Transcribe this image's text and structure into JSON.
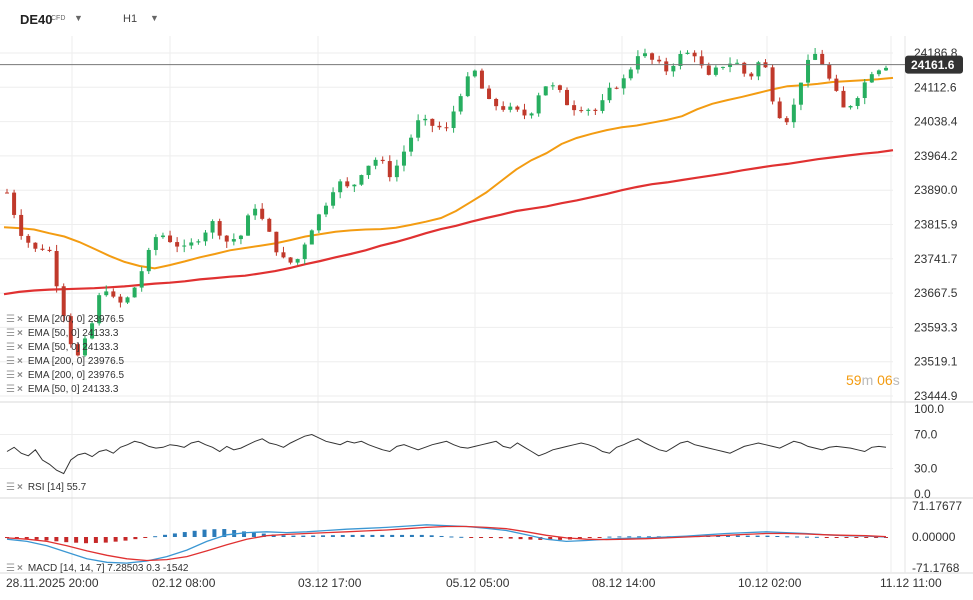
{
  "header": {
    "symbol": "DE40",
    "symbol_type": "CFD",
    "timeframe": "H1"
  },
  "countdown": {
    "minutes": "59",
    "minutes_unit": "m",
    "seconds": "06",
    "seconds_unit": "s"
  },
  "colors": {
    "up": "#27ae60",
    "down": "#c0392b",
    "ema50": "#f39c12",
    "ema200": "#e03131",
    "rsi": "#333333",
    "macd_line": "#3b97d3",
    "macd_signal": "#e03131",
    "hist_up": "#2b7bb9",
    "hist_down": "#c62828",
    "price_badge": "#333333"
  },
  "indicator_labels": [
    {
      "name": "EMA [200, 0]",
      "value": "23976.5"
    },
    {
      "name": "EMA [50, 0]",
      "value": "24133.3"
    },
    {
      "name": "EMA [50, 0]",
      "value": "24133.3"
    },
    {
      "name": "EMA [200, 0]",
      "value": "23976.5"
    },
    {
      "name": "EMA [200, 0]",
      "value": "23976.5"
    },
    {
      "name": "EMA [50, 0]",
      "value": "24133.3"
    }
  ],
  "rsi_label": {
    "name": "RSI [14]",
    "value": "55.7"
  },
  "macd_label": {
    "name": "MACD [14, 14, 7]",
    "value1": "7.28503",
    "value2": "0.3",
    "value3": "-1542"
  },
  "chart_data": {
    "type": "candlestick",
    "symbol": "DE40",
    "timeframe": "H1",
    "current_price": "24161.6",
    "current_price_value": 24161.6,
    "price_axis": {
      "ticks": [
        "24186.8",
        "24112.6",
        "24038.4",
        "23964.2",
        "23890.0",
        "23815.9",
        "23741.7",
        "23667.5",
        "23593.3",
        "23519.1",
        "23444.9"
      ],
      "range": [
        23444.9,
        24186.8
      ]
    },
    "time_axis": {
      "labels": [
        "28.11.2025 20:00",
        "02.12 08:00",
        "03.12 17:00",
        "05.12 05:00",
        "08.12 14:00",
        "10.12 02:00",
        "11.12 11:00"
      ]
    },
    "ema50_last": 24133.3,
    "ema200_last": 23976.5,
    "ema50_path": [
      23810,
      23808,
      23805,
      23797,
      23790,
      23778,
      23763,
      23748,
      23735,
      23726,
      23721,
      23728,
      23736,
      23745,
      23752,
      23760,
      23765,
      23770,
      23775,
      23782,
      23790,
      23795,
      23800,
      23803,
      23805,
      23806,
      23809,
      23815,
      23822,
      23830,
      23845,
      23865,
      23885,
      23910,
      23935,
      23955,
      23970,
      23990,
      24003,
      24012,
      24020,
      24026,
      24030,
      24036,
      24042,
      24050,
      24065,
      24077,
      24085,
      24092,
      24100,
      24108,
      24115,
      24117,
      24120,
      24124,
      24126,
      24128,
      24130,
      24133
    ],
    "ema200_path": [
      23665,
      23670,
      23673,
      23675,
      23676,
      23677,
      23678,
      23680,
      23682,
      23685,
      23688,
      23690,
      23693,
      23697,
      23700,
      23703,
      23705,
      23710,
      23715,
      23722,
      23730,
      23737,
      23745,
      23752,
      23760,
      23770,
      23778,
      23787,
      23797,
      23806,
      23813,
      23822,
      23830,
      23837,
      23845,
      23850,
      23855,
      23862,
      23868,
      23875,
      23882,
      23890,
      23897,
      23903,
      23907,
      23912,
      23917,
      23922,
      23927,
      23933,
      23938,
      23943,
      23947,
      23952,
      23957,
      23961,
      23965,
      23969,
      23972,
      23976.5
    ],
    "candles": [],
    "rsi": {
      "label": "RSI [14]",
      "last": 55.7,
      "ticks": [
        "100.0",
        "70.0",
        "30.0",
        "0.0"
      ],
      "levels": [
        100,
        70,
        30,
        0
      ],
      "path": [
        50,
        55,
        48,
        45,
        52,
        40,
        35,
        28,
        24,
        40,
        46,
        48,
        44,
        50,
        52,
        48,
        55,
        58,
        62,
        60,
        56,
        54,
        55,
        58,
        57,
        55,
        60,
        62,
        58,
        55,
        50,
        56,
        52,
        54,
        58,
        62,
        65,
        60,
        58,
        55,
        60,
        64,
        68,
        70,
        66,
        62,
        60,
        58,
        62,
        60,
        62,
        58,
        55,
        52,
        50,
        56,
        58,
        55,
        52,
        55,
        58,
        60,
        62,
        58,
        55,
        54,
        56,
        58,
        60,
        62,
        56,
        54,
        60,
        55,
        50,
        45,
        48,
        52,
        54,
        56,
        58,
        60,
        58,
        55,
        50,
        48,
        55,
        58,
        62,
        65,
        60,
        56,
        52,
        50,
        55,
        60,
        62,
        58,
        56,
        54,
        52,
        50,
        48,
        52,
        56,
        58,
        60,
        58,
        56,
        54,
        58,
        62,
        60,
        56,
        54,
        52,
        55,
        56,
        55,
        54,
        52,
        50,
        55,
        56,
        55
      ]
    },
    "macd": {
      "label": "MACD [14, 14, 7]",
      "values": [
        "7.28503",
        "0.3",
        "-1542"
      ],
      "ticks": [
        "71.17677",
        "0.00000",
        "-71.1768"
      ],
      "range": [
        -71.1768,
        71.17677
      ]
    }
  }
}
